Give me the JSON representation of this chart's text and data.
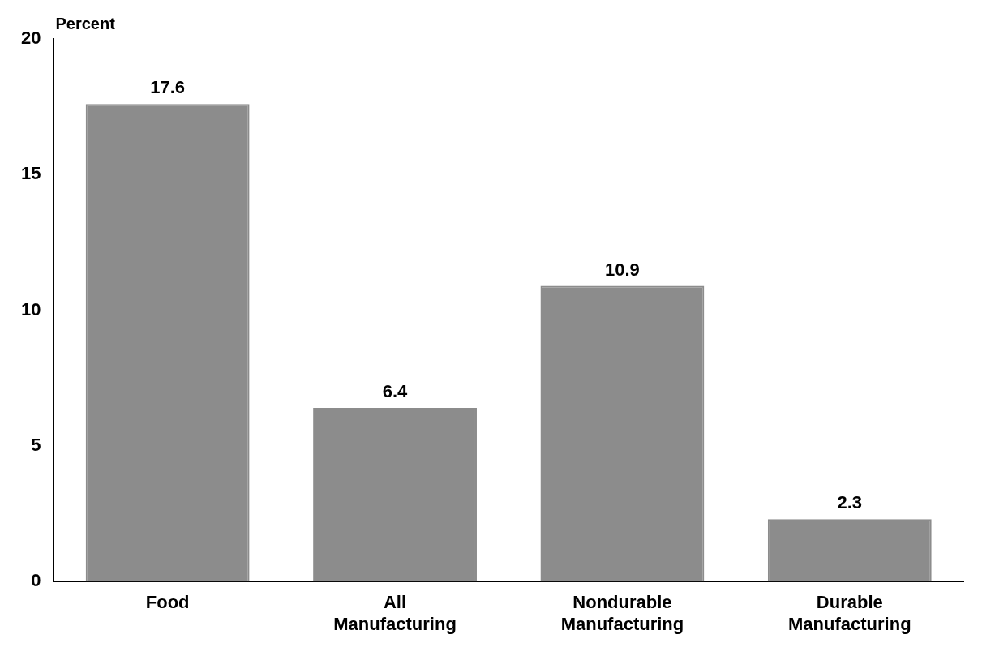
{
  "chart_data": {
    "type": "bar",
    "ylabel": "Percent",
    "categories": [
      "Food",
      "All Manufacturing",
      "Nondurable Manufacturing",
      "Durable Manufacturing"
    ],
    "values": [
      17.6,
      6.4,
      10.9,
      2.3
    ],
    "color": "#8c8c8c",
    "ylim": [
      0,
      20
    ],
    "yticks": [
      0,
      5,
      10,
      15,
      20
    ],
    "grid": false,
    "legend": false,
    "data_labels": true
  }
}
